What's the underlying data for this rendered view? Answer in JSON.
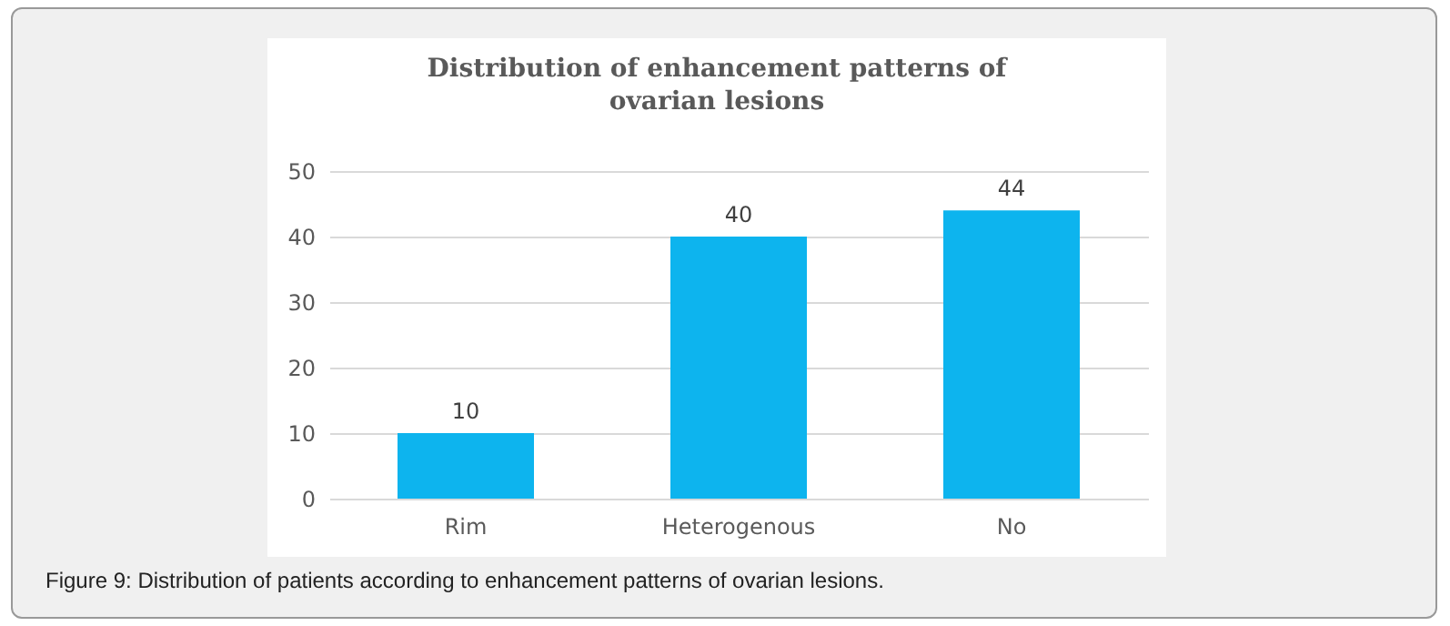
{
  "chart_data": {
    "type": "bar",
    "title": "Distribution of enhancement patterns of ovarian lesions",
    "categories": [
      "Rim",
      "Heterogenous",
      "No"
    ],
    "values": [
      10,
      40,
      44
    ],
    "color": "#0db4ee",
    "ylim": [
      0,
      50
    ],
    "yticks": [
      0,
      10,
      20,
      30,
      40,
      50
    ],
    "grid": "y",
    "data_labels": true,
    "annotations": [
      "Figure 9: Distribution of patients according to enhancement patterns of ovarian lesions."
    ]
  }
}
